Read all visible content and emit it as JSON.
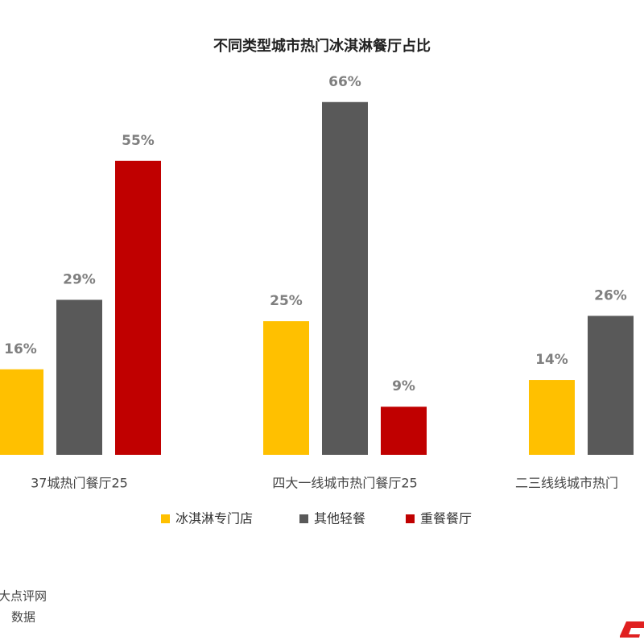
{
  "chart_data": {
    "type": "bar",
    "title": "不同类型城市热门冰淇淋餐厅占比",
    "categories": [
      "37城热门餐厅25",
      "四大一线城市热门餐厅25",
      "二三线线城市热门"
    ],
    "series": [
      {
        "name": "冰淇淋专门店",
        "color": "#ffc000",
        "values": [
          16,
          25,
          14
        ],
        "value_labels": [
          "16%",
          "25%",
          "14%"
        ]
      },
      {
        "name": "其他轻餐",
        "color": "#595959",
        "values": [
          29,
          66,
          26
        ],
        "value_labels": [
          "29%",
          "66%",
          "26%"
        ]
      },
      {
        "name": "重餐餐厅",
        "color": "#c00000",
        "values": [
          55,
          9,
          null
        ],
        "value_labels": [
          "55%",
          "9%",
          null
        ]
      }
    ],
    "legend": "bottom",
    "source": [
      "大点评网",
      "数据"
    ]
  }
}
